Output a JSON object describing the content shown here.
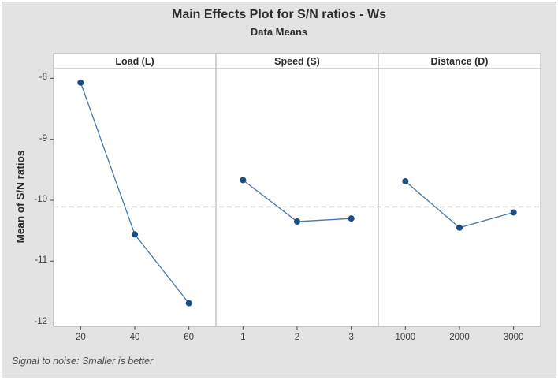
{
  "title": "Main Effects Plot for S/N ratios - Ws",
  "subtitle": "Data Means",
  "footer": "Signal to noise: Smaller is better",
  "colors": {
    "canvas": "#e3e3e3",
    "panel_fill": "#ffffff",
    "panel_border": "#a8a8a8",
    "marker": "#1b4e87",
    "line": "#4a78a8",
    "reference_line": "#c0c0c0",
    "tick": "#4a4a4a",
    "text": "#2b2b2b"
  },
  "chart_data": {
    "type": "line",
    "title": "Main Effects Plot for S/N ratios - Ws",
    "subtitle": "Data Means",
    "ylabel": "Mean of S/N ratios",
    "yticks": [
      -8,
      -9,
      -10,
      -11,
      -12
    ],
    "ylim": [
      -12.07,
      -7.84
    ],
    "grid": false,
    "legend": "none",
    "reference_line": -10.11,
    "note": "Signal to noise: Smaller is better",
    "panels": [
      {
        "label": "Load (L)",
        "categories": [
          "20",
          "40",
          "60"
        ],
        "values": [
          -8.07,
          -10.56,
          -11.69
        ]
      },
      {
        "label": "Speed (S)",
        "categories": [
          "1",
          "2",
          "3"
        ],
        "values": [
          -9.67,
          -10.35,
          -10.3
        ]
      },
      {
        "label": "Distance (D)",
        "categories": [
          "1000",
          "2000",
          "3000"
        ],
        "values": [
          -9.69,
          -10.45,
          -10.2
        ]
      }
    ]
  }
}
